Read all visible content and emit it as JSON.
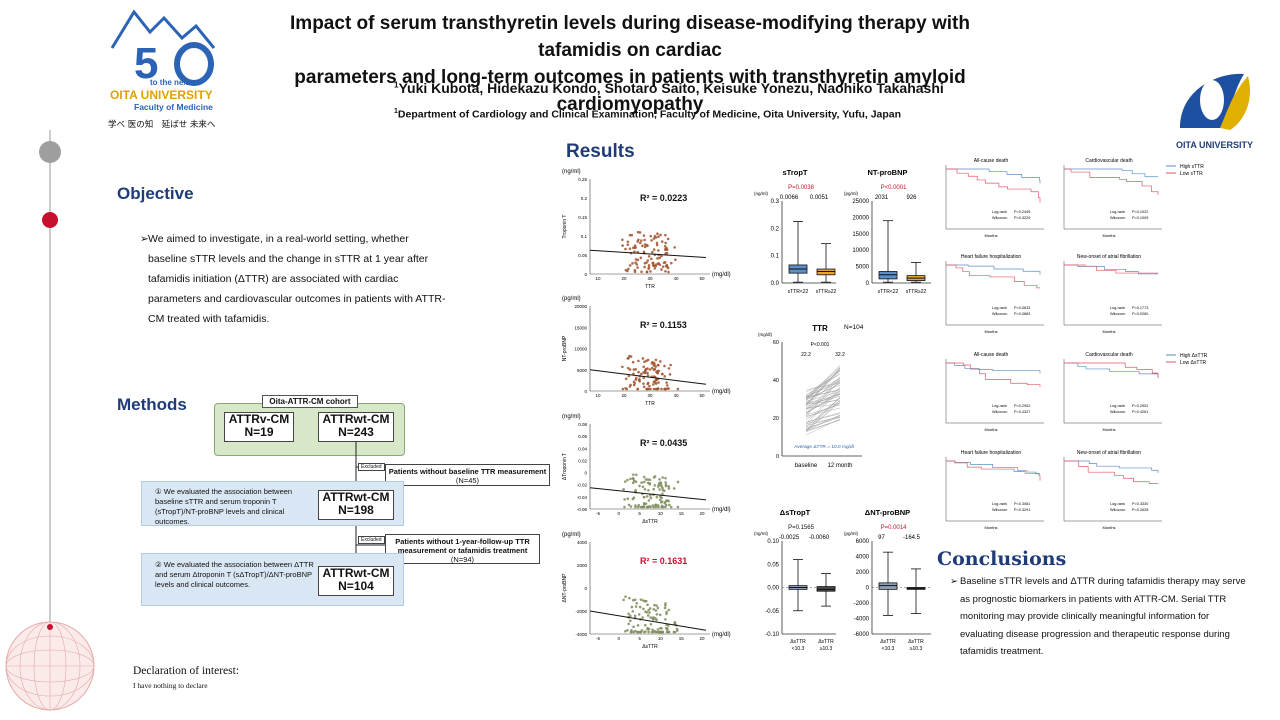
{
  "header": {
    "title_line1": "Impact of serum transthyretin levels during disease-modifying therapy with tafamidis on cardiac",
    "title_line2": "parameters and long-term outcomes in patients with transthyretin amyloid cardiomyopathy",
    "authors": "Yuki Kubota, Hidekazu Kondo, Shotaro Saito, Keisuke Yonezu, Naohiko Takahashi",
    "affiliation": "Department of Cardiology and Clinical Examination, Faculty of Medicine, Oita University, Yufu, Japan",
    "logo_left_text1": "to the next",
    "logo_left_text2": "OITA UNIVERSITY",
    "logo_left_text3": "Faculty of Medicine",
    "logo_left_motto": "学べ 医の知　延ばせ 未来へ",
    "logo_right_text": "OITA UNIVERSITY"
  },
  "colors": {
    "navy": "#1f3c78",
    "green": "#d6e8c8",
    "blue_panel": "#d9e6f3",
    "red": "#c8102e",
    "brown": "#a0522d",
    "olive": "#7d8c5a"
  },
  "objective": {
    "heading": "Objective",
    "text": "We aimed to investigate, in a real-world setting, whether baseline sTTR levels and the change in sTTR at 1 year after tafamidis initiation (ΔTTR) are associated with cardiac parameters and cardiovascular outcomes in patients with ATTR-CM treated with tafamidis."
  },
  "methods": {
    "heading": "Methods",
    "cohort": "Oita-ATTR-CM cohort",
    "attrv_name": "ATTRv-CM",
    "attrv_n": "N=19",
    "attrwt_name": "ATTRwt-CM",
    "attrwt_n": "N=243",
    "excluded": "Excluded",
    "excl1_line1": "Patients without baseline TTR measurement",
    "excl1_line2": "(N=45)",
    "step1_text": "① We evaluated the association between baseline sTTR and serum troponin T (sTropT)/NT-proBNP levels and clinical outcomes.",
    "step1_name": "ATTRwt-CM",
    "step1_n": "N=198",
    "excl2_line1": "Patients without 1-year-follow-up TTR",
    "excl2_line2": "measurement or tafamidis treatment",
    "excl2_line3": "(N=94)",
    "step2_text": "② We evaluated the association between ΔTTR and serum Δtroponin T (sΔTropT)/ΔNT-proBNP levels and clinical outcomes.",
    "step2_name": "ATTRwt-CM",
    "step2_n": "N=104"
  },
  "results": {
    "heading": "Results",
    "scatter1": {
      "ylabel": "Troponin T",
      "unit_y": "(ng/ml)",
      "unit_x": "(mg/dl)",
      "xlabel": "TTR",
      "r2": "0.0223",
      "yticks": [
        "0.25",
        "0.2",
        "0.15",
        "0.1",
        "0.05",
        "0"
      ],
      "xticks": [
        "10",
        "20",
        "30",
        "40",
        "50"
      ]
    },
    "scatter2": {
      "ylabel": "NT-proBNP",
      "unit_y": "(pg/ml)",
      "unit_x": "(mg/dl)",
      "xlabel": "TTR",
      "r2": "0.1153",
      "yticks": [
        "20000",
        "15000",
        "10000",
        "5000",
        "0"
      ],
      "xticks": [
        "10",
        "20",
        "30",
        "40",
        "50"
      ]
    },
    "scatter3": {
      "ylabel": "ΔTroponin T",
      "unit_y": "(ng/ml)",
      "unit_x": "(mg/dl)",
      "xlabel": "ΔsTTR",
      "r2": "0.0435",
      "yticks": [
        "0.08",
        "0.06",
        "0.04",
        "0.02",
        "0",
        "-0.02",
        "-0.04",
        "-0.06"
      ],
      "xticks": [
        "-5",
        "0",
        "5",
        "10",
        "15",
        "20"
      ]
    },
    "scatter4": {
      "ylabel": "ΔNT-proBNP",
      "unit_y": "(pg/ml)",
      "unit_x": "(mg/dl)",
      "xlabel": "ΔsTTR",
      "r2": "0.1631",
      "yticks": [
        "4000",
        "2000",
        "0",
        "-2000",
        "-4000"
      ],
      "xticks": [
        "-5",
        "0",
        "5",
        "10",
        "15",
        "20"
      ]
    },
    "box_tropt": {
      "title": "sTropT",
      "unit": "(ng/ml)",
      "p": "P=0.0038",
      "med_low": "0.0066",
      "med_high": "0.0051",
      "yticks": [
        "0.3",
        "0.2",
        "0.1",
        "0.0"
      ],
      "cat_low": "sTTR<22",
      "cat_high": "sTTR≥22"
    },
    "box_bnp": {
      "title": "NT-proBNP",
      "unit": "(pg/ml)",
      "p": "P<0.0001",
      "med_low": "2031",
      "med_high": "926",
      "yticks": [
        "25000",
        "20000",
        "15000",
        "10000",
        "5000",
        "0"
      ],
      "cat_low": "sTTR<22",
      "cat_high": "sTTR≥22"
    },
    "ttr_plot": {
      "title": "TTR",
      "n": "N=104",
      "unit": "(mg/dl)",
      "p": "P<0.001",
      "v_base": "22.2",
      "v_12m": "32.2",
      "note": "Average ΔTTR = 10.0 mg/dl",
      "xlabels": [
        "baseline",
        "12 month"
      ],
      "yticks": [
        "60",
        "40",
        "20",
        "0"
      ]
    },
    "box_dtropt": {
      "title": "ΔsTropT",
      "unit": "(ng/ml)",
      "p": "P=0.1565",
      "med_low": "-0.0025",
      "med_high": "-0.0060",
      "yticks": [
        "0.10",
        "0.05",
        "0.00",
        "-0.05",
        "-0.10"
      ],
      "cat_low_1": "ΔsTTR",
      "cat_low_2": "<10.3",
      "cat_high_1": "ΔsTTR",
      "cat_high_2": "≥10.3"
    },
    "box_dbnp": {
      "title": "ΔNT-proBNP",
      "unit": "(pg/ml)",
      "p": "P=0.0014",
      "med_low": "97",
      "med_high": "-164.5",
      "yticks": [
        "6000",
        "4000",
        "2000",
        "0",
        "-2000",
        "-4000",
        "-6000"
      ],
      "cat_low_1": "ΔsTTR",
      "cat_low_2": "<10.3",
      "cat_high_1": "ΔsTTR",
      "cat_high_2": "≥10.3"
    },
    "km_legend_top": {
      "high": "High  sTTR",
      "low": "Low   sTTR"
    },
    "km_legend_bottom": {
      "high": "High  ΔsTTR",
      "low": "Low   ΔsTTR"
    },
    "km_titles": [
      "All-cause death",
      "Cardiovascular death",
      "Heart failure hospitalization",
      "New-onset of atrial fibrillation",
      "All-cause death",
      "Cardiovascular death",
      "Heart failure hospitalization",
      "New-onset of atrial fibrillation"
    ],
    "km_xlabel": "Months",
    "km_logrank": "Log-rank",
    "km_wilcoxon": "Wilcoxon",
    "km_pvals": [
      [
        "P=0.2445",
        "P=0.3229"
      ],
      [
        "P=0.1022",
        "P=0.1009"
      ],
      [
        "P=0.0633",
        "P=0.0883"
      ],
      [
        "P=0.1773",
        "P=0.0260"
      ],
      [
        "P=0.2902",
        "P=0.4327"
      ],
      [
        "P=0.2902",
        "P=0.4261"
      ],
      [
        "P=0.3081",
        "P=0.3291"
      ],
      [
        "P=0.3330",
        "P=0.2628"
      ]
    ]
  },
  "conclusions": {
    "heading": "Conclusions",
    "text": "Baseline sTTR levels and ΔTTR during tafamidis therapy may serve as prognostic biomarkers in patients with ATTR-CM. Serial TTR monitoring may provide clinically meaningful information for evaluating disease progression and therapeutic response during tafamidis treatment."
  },
  "declaration": {
    "heading": "Declaration of interest:",
    "text": "I have nothing to declare"
  }
}
